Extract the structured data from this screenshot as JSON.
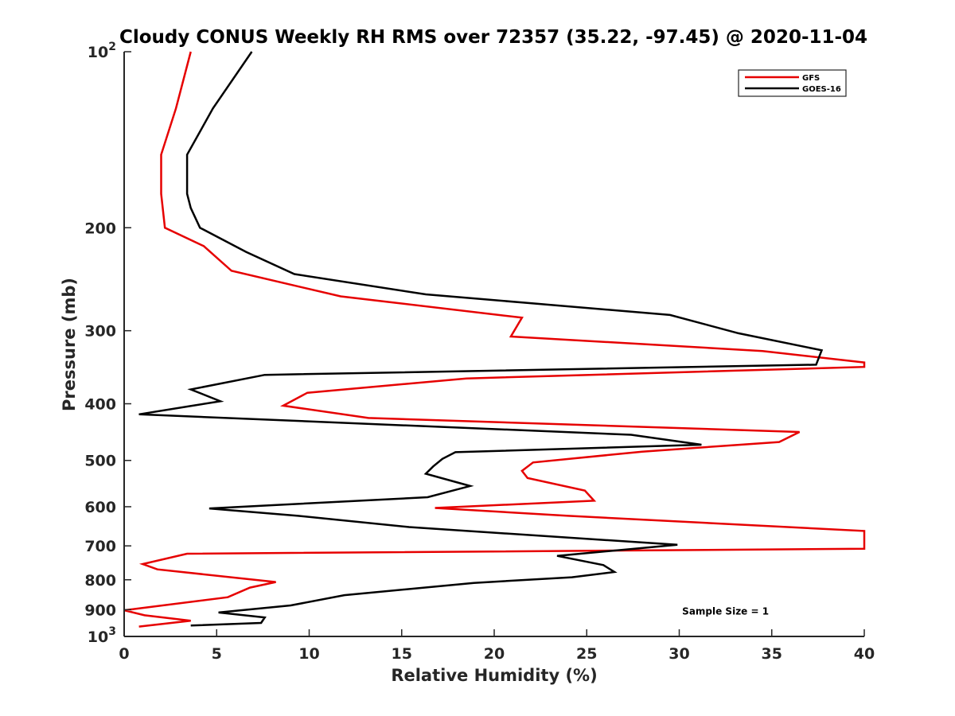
{
  "chart_data": {
    "type": "line",
    "title": "Cloudy CONUS Weekly RH RMS over 72357 (35.22, -97.45) @ 2020-11-04",
    "xlabel": "Relative Humidity (%)",
    "ylabel": "Pressure (mb)",
    "xlim": [
      0,
      40
    ],
    "ylim": [
      100,
      1000
    ],
    "y_scale": "log",
    "y_reversed": true,
    "grid": false,
    "legend_position": "top-right",
    "x_ticks": [
      0,
      5,
      10,
      15,
      20,
      25,
      30,
      35,
      40
    ],
    "y_ticks": [
      {
        "value": 100,
        "label": "10",
        "sup": "2"
      },
      {
        "value": 200,
        "label": "200",
        "sup": ""
      },
      {
        "value": 300,
        "label": "300",
        "sup": ""
      },
      {
        "value": 400,
        "label": "400",
        "sup": ""
      },
      {
        "value": 500,
        "label": "500",
        "sup": ""
      },
      {
        "value": 600,
        "label": "600",
        "sup": ""
      },
      {
        "value": 700,
        "label": "700",
        "sup": ""
      },
      {
        "value": 800,
        "label": "800",
        "sup": ""
      },
      {
        "value": 900,
        "label": "900",
        "sup": ""
      },
      {
        "value": 1000,
        "label": "10",
        "sup": "3"
      }
    ],
    "series": [
      {
        "name": "GFS",
        "color": "#e60000",
        "points": [
          {
            "x": 3.6,
            "y": 100
          },
          {
            "x": 2.8,
            "y": 125
          },
          {
            "x": 2.0,
            "y": 150
          },
          {
            "x": 2.0,
            "y": 175
          },
          {
            "x": 2.2,
            "y": 200
          },
          {
            "x": 4.3,
            "y": 215
          },
          {
            "x": 5.8,
            "y": 237
          },
          {
            "x": 11.7,
            "y": 262
          },
          {
            "x": 21.5,
            "y": 285
          },
          {
            "x": 20.9,
            "y": 307
          },
          {
            "x": 34.5,
            "y": 325
          },
          {
            "x": 40.0,
            "y": 340
          },
          {
            "x": 40.0,
            "y": 346
          },
          {
            "x": 18.5,
            "y": 362
          },
          {
            "x": 9.9,
            "y": 383
          },
          {
            "x": 8.6,
            "y": 403
          },
          {
            "x": 13.2,
            "y": 423
          },
          {
            "x": 36.5,
            "y": 447
          },
          {
            "x": 35.4,
            "y": 465
          },
          {
            "x": 28.0,
            "y": 483
          },
          {
            "x": 22.1,
            "y": 504
          },
          {
            "x": 21.5,
            "y": 521
          },
          {
            "x": 21.8,
            "y": 536
          },
          {
            "x": 24.9,
            "y": 563
          },
          {
            "x": 25.4,
            "y": 586
          },
          {
            "x": 16.8,
            "y": 603
          },
          {
            "x": 24.0,
            "y": 622
          },
          {
            "x": 40.0,
            "y": 660
          },
          {
            "x": 40.0,
            "y": 708
          },
          {
            "x": 3.4,
            "y": 722
          },
          {
            "x": 1.0,
            "y": 752
          },
          {
            "x": 1.8,
            "y": 768
          },
          {
            "x": 8.2,
            "y": 807
          },
          {
            "x": 6.8,
            "y": 825
          },
          {
            "x": 5.6,
            "y": 857
          },
          {
            "x": 0.0,
            "y": 902
          },
          {
            "x": 1.1,
            "y": 920
          },
          {
            "x": 3.6,
            "y": 940
          },
          {
            "x": 0.8,
            "y": 962
          }
        ]
      },
      {
        "name": "GOES-16",
        "color": "#000000",
        "points": [
          {
            "x": 6.9,
            "y": 100
          },
          {
            "x": 4.8,
            "y": 125
          },
          {
            "x": 3.4,
            "y": 150
          },
          {
            "x": 3.4,
            "y": 175
          },
          {
            "x": 3.6,
            "y": 185
          },
          {
            "x": 4.1,
            "y": 200
          },
          {
            "x": 6.6,
            "y": 220
          },
          {
            "x": 9.2,
            "y": 240
          },
          {
            "x": 16.3,
            "y": 260
          },
          {
            "x": 29.5,
            "y": 282
          },
          {
            "x": 33.2,
            "y": 303
          },
          {
            "x": 37.7,
            "y": 324
          },
          {
            "x": 37.4,
            "y": 343
          },
          {
            "x": 7.6,
            "y": 357
          },
          {
            "x": 3.6,
            "y": 378
          },
          {
            "x": 5.2,
            "y": 396
          },
          {
            "x": 0.8,
            "y": 417
          },
          {
            "x": 27.4,
            "y": 452
          },
          {
            "x": 31.2,
            "y": 470
          },
          {
            "x": 17.9,
            "y": 484
          },
          {
            "x": 17.2,
            "y": 497
          },
          {
            "x": 16.7,
            "y": 512
          },
          {
            "x": 16.3,
            "y": 527
          },
          {
            "x": 18.7,
            "y": 553
          },
          {
            "x": 16.4,
            "y": 578
          },
          {
            "x": 4.6,
            "y": 604
          },
          {
            "x": 9.4,
            "y": 622
          },
          {
            "x": 15.4,
            "y": 650
          },
          {
            "x": 29.9,
            "y": 697
          },
          {
            "x": 23.4,
            "y": 728
          },
          {
            "x": 25.9,
            "y": 755
          },
          {
            "x": 26.5,
            "y": 776
          },
          {
            "x": 24.2,
            "y": 792
          },
          {
            "x": 18.9,
            "y": 810
          },
          {
            "x": 11.9,
            "y": 850
          },
          {
            "x": 9.0,
            "y": 885
          },
          {
            "x": 5.1,
            "y": 910
          },
          {
            "x": 7.6,
            "y": 928
          },
          {
            "x": 7.4,
            "y": 948
          },
          {
            "x": 3.6,
            "y": 958
          }
        ]
      }
    ],
    "annotations": [
      {
        "text": "Sample Size = 1",
        "x": 32.5,
        "y": 906
      }
    ]
  }
}
